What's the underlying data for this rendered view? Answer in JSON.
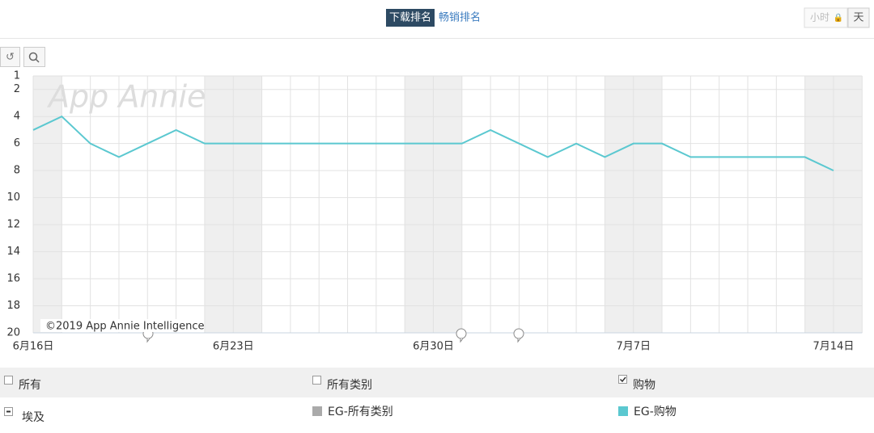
{
  "ui": {
    "tabs": [
      "下载排名",
      "畅销排名"
    ],
    "granularity": [
      "小时",
      "天"
    ],
    "watermark": "App Annie",
    "copyright": "©2019 App Annie Intelligence",
    "filters": {
      "row1": [
        "所有",
        "所有类别",
        "购物"
      ],
      "country": "埃及",
      "series_other": "EG-所有类别"
    }
  },
  "chart_data": {
    "type": "line",
    "categories": [
      "6月16日",
      null,
      null,
      null,
      null,
      null,
      null,
      "6月23日",
      null,
      null,
      null,
      null,
      null,
      null,
      "6月30日",
      null,
      null,
      null,
      null,
      null,
      null,
      "7月7日",
      null,
      null,
      null,
      null,
      null,
      null,
      "7月14日"
    ],
    "series": [
      {
        "name": "EG-购物",
        "color": "#5bc8d0",
        "values": [
          5,
          4,
          6,
          7,
          6,
          5,
          6,
          6,
          6,
          6,
          6,
          6,
          6,
          6,
          6,
          6,
          5,
          6,
          7,
          6,
          7,
          6,
          6,
          7,
          7,
          7,
          7,
          7,
          8
        ]
      }
    ],
    "ylim": [
      1,
      20
    ],
    "y_inverted": true,
    "yticks": [
      1,
      2,
      4,
      6,
      8,
      10,
      12,
      14,
      16,
      18,
      20
    ],
    "grid": true
  }
}
